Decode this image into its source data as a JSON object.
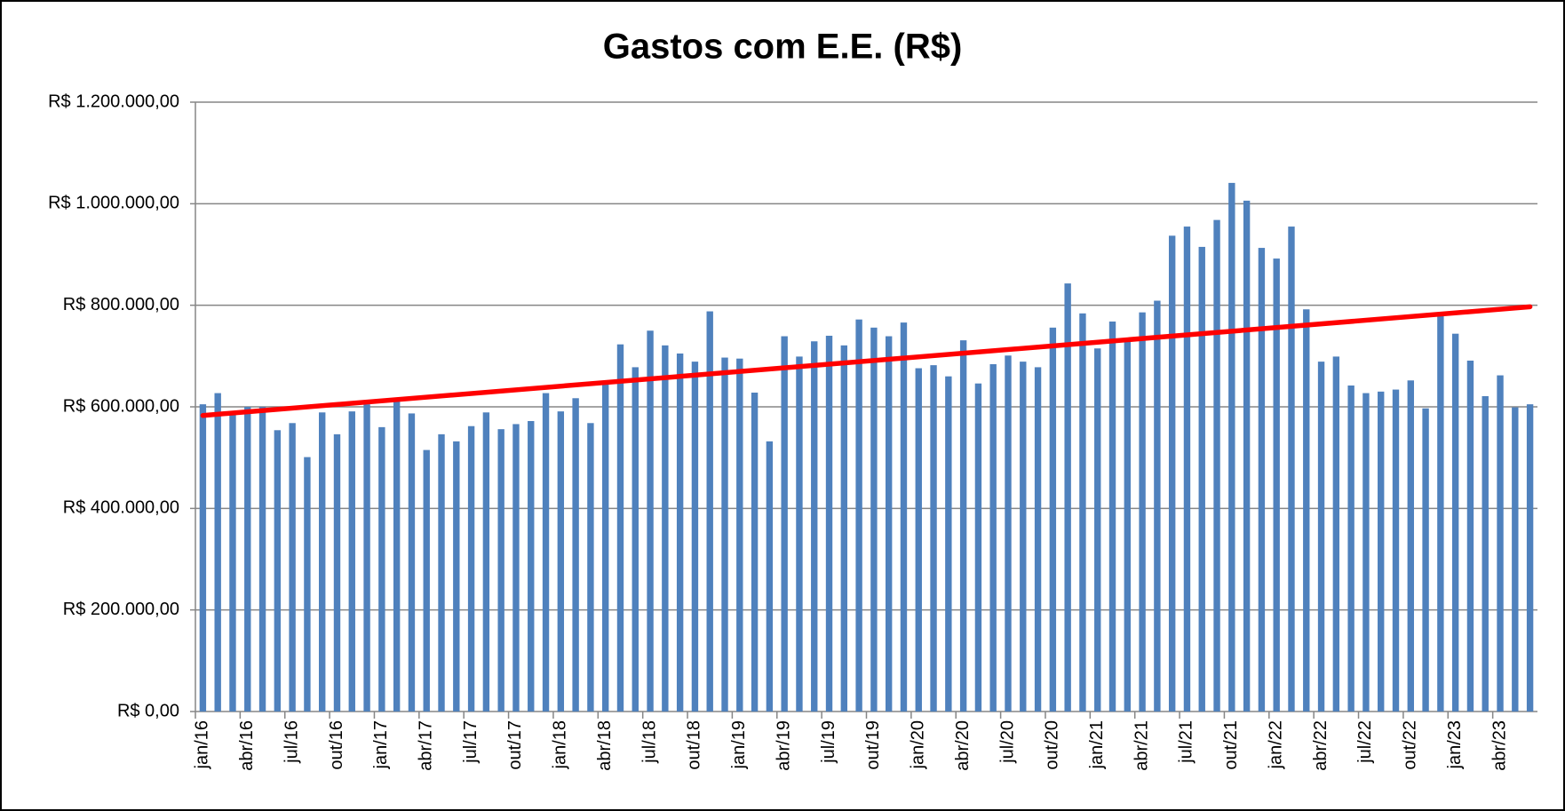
{
  "chart_data": {
    "type": "bar",
    "title": "Gastos com E.E. (R$)",
    "categories": [
      "jan/16",
      null,
      null,
      "abr/16",
      null,
      null,
      "jul/16",
      null,
      null,
      "out/16",
      null,
      null,
      "jan/17",
      null,
      null,
      "abr/17",
      null,
      null,
      "jul/17",
      null,
      null,
      "out/17",
      null,
      null,
      "jan/18",
      null,
      null,
      "abr/18",
      null,
      null,
      "jul/18",
      null,
      null,
      "out/18",
      null,
      null,
      "jan/19",
      null,
      null,
      "abr/19",
      null,
      null,
      "jul/19",
      null,
      null,
      "out/19",
      null,
      null,
      "jan/20",
      null,
      null,
      "abr/20",
      null,
      null,
      "jul/20",
      null,
      null,
      "out/20",
      null,
      null,
      "jan/21",
      null,
      null,
      "abr/21",
      null,
      null,
      "jul/21",
      null,
      null,
      "out/21",
      null,
      null,
      "jan/22",
      null,
      null,
      "abr/22",
      null,
      null,
      "jul/22",
      null,
      null,
      "out/22",
      null,
      null,
      "jan/23",
      null,
      null,
      "abr/23",
      null,
      null
    ],
    "values": [
      605000,
      627000,
      590000,
      600000,
      600000,
      554000,
      568000,
      501000,
      589000,
      546000,
      591000,
      605000,
      560000,
      613000,
      587000,
      515000,
      546000,
      532000,
      562000,
      589000,
      556000,
      566000,
      572000,
      627000,
      591000,
      617000,
      568000,
      648000,
      723000,
      678000,
      750000,
      721000,
      705000,
      689000,
      788000,
      697000,
      695000,
      628000,
      532000,
      739000,
      699000,
      729000,
      740000,
      721000,
      772000,
      756000,
      739000,
      766000,
      676000,
      682000,
      660000,
      731000,
      646000,
      684000,
      701000,
      689000,
      678000,
      756000,
      843000,
      784000,
      715000,
      768000,
      733000,
      786000,
      809000,
      937000,
      955000,
      915000,
      968000,
      1041000,
      1006000,
      913000,
      892000,
      955000,
      792000,
      689000,
      699000,
      642000,
      627000,
      630000,
      634000,
      652000,
      597000,
      784000,
      744000,
      691000,
      621000,
      662000,
      599000,
      605000
    ],
    "color": "#4f81bd",
    "trendline": {
      "color": "#ff0000",
      "values": [
        583000,
        797000
      ]
    },
    "ylim": [
      0,
      1200000
    ],
    "yticks": [
      {
        "value": 0,
        "label": "R$ 0,00"
      },
      {
        "value": 200000,
        "label": "R$ 200.000,00"
      },
      {
        "value": 400000,
        "label": "R$ 400.000,00"
      },
      {
        "value": 600000,
        "label": "R$ 600.000,00"
      },
      {
        "value": 800000,
        "label": "R$ 800.000,00"
      },
      {
        "value": 1000000,
        "label": "R$ 1.000.000,00"
      },
      {
        "value": 1200000,
        "label": "R$ 1.200.000,00"
      }
    ],
    "grid": true
  }
}
